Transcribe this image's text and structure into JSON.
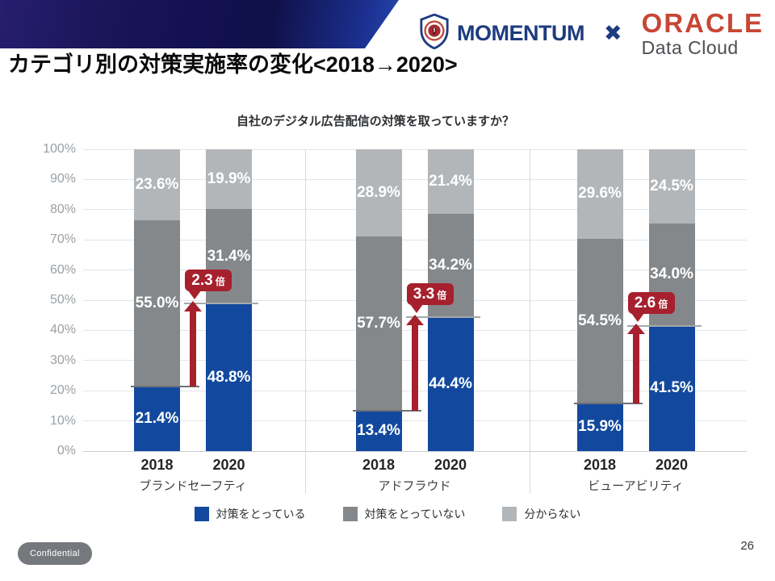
{
  "header": {
    "momentum": "MOMENTUM",
    "cross": "✖",
    "oracle": "ORACLE",
    "oracle_sub": "Data Cloud"
  },
  "colors": {
    "momentum-navy": "#1d3c80",
    "oracle-red": "#c74634",
    "oracle-sub-gray": "#4b4e52"
  },
  "slide_title": "カテゴリ別の対策実施率の変化<2018→2020>",
  "chart_data": {
    "type": "bar",
    "variant": "stacked-100-percent",
    "title": "自社のデジタル広告配信の対策を取っていますか？",
    "ylim": [
      0,
      100
    ],
    "ytick_step": 10,
    "ytick_suffix": "%",
    "grid": true,
    "legend_position": "bottom",
    "accent_color": "#a6202e",
    "series": [
      {
        "name": "対策をとっている",
        "color": "#12499e"
      },
      {
        "name": "対策をとっていない",
        "color": "#85888b"
      },
      {
        "name": "分からない",
        "color": "#b3b6b9"
      }
    ],
    "groups": [
      {
        "category": "ブランドセーフティ",
        "bars": [
          {
            "year": "2018",
            "values": [
              21.4,
              55.0,
              23.6
            ]
          },
          {
            "year": "2020",
            "values": [
              48.8,
              31.4,
              19.9
            ]
          }
        ],
        "multiplier": "2.3",
        "multiplier_unit": "倍"
      },
      {
        "category": "アドフラウド",
        "bars": [
          {
            "year": "2018",
            "values": [
              13.4,
              57.7,
              28.9
            ]
          },
          {
            "year": "2020",
            "values": [
              44.4,
              34.2,
              21.4
            ]
          }
        ],
        "multiplier": "3.3",
        "multiplier_unit": "倍"
      },
      {
        "category": "ビューアビリティ",
        "bars": [
          {
            "year": "2018",
            "values": [
              15.9,
              54.5,
              29.6
            ]
          },
          {
            "year": "2020",
            "values": [
              41.5,
              34.0,
              24.5
            ]
          }
        ],
        "multiplier": "2.6",
        "multiplier_unit": "倍"
      }
    ]
  },
  "footer": {
    "confidential": "Confidential",
    "page": "26"
  }
}
